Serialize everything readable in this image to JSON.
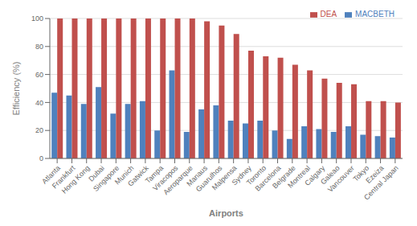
{
  "chart_data": {
    "type": "bar",
    "categories": [
      "Atlanta",
      "Frankfurt",
      "Hong Kong",
      "Dubai",
      "Singapore",
      "Munich",
      "Gatwick",
      "Tampa",
      "Viracopos",
      "Aeroparque",
      "Manaus",
      "Guarulhos",
      "Malpensa",
      "Sydney",
      "Toronto",
      "Barcelona",
      "Belgrade",
      "Montreal",
      "Calgary",
      "Galeao",
      "Vancouver",
      "Tokyo",
      "Ezeiza",
      "Central Japan"
    ],
    "series": [
      {
        "name": "MACBETH",
        "color": "#4F81BD",
        "values": [
          47,
          45,
          39,
          51,
          32,
          39,
          41,
          20,
          63,
          19,
          35,
          38,
          27,
          25,
          27,
          20,
          14,
          23,
          21,
          19,
          23,
          17,
          16,
          15
        ]
      },
      {
        "name": "DEA",
        "color": "#C0504D",
        "values": [
          100,
          100,
          100,
          100,
          100,
          100,
          100,
          100,
          100,
          100,
          98,
          95,
          89,
          77,
          73,
          72,
          67,
          63,
          57,
          54,
          53,
          41,
          41,
          40
        ]
      }
    ],
    "xlabel": "Airports",
    "ylabel": "Efficiency (%)",
    "ylim": [
      0,
      100
    ],
    "yticks": [
      0,
      20,
      40,
      60,
      80,
      100
    ],
    "grid": true,
    "legend": "upper right"
  }
}
